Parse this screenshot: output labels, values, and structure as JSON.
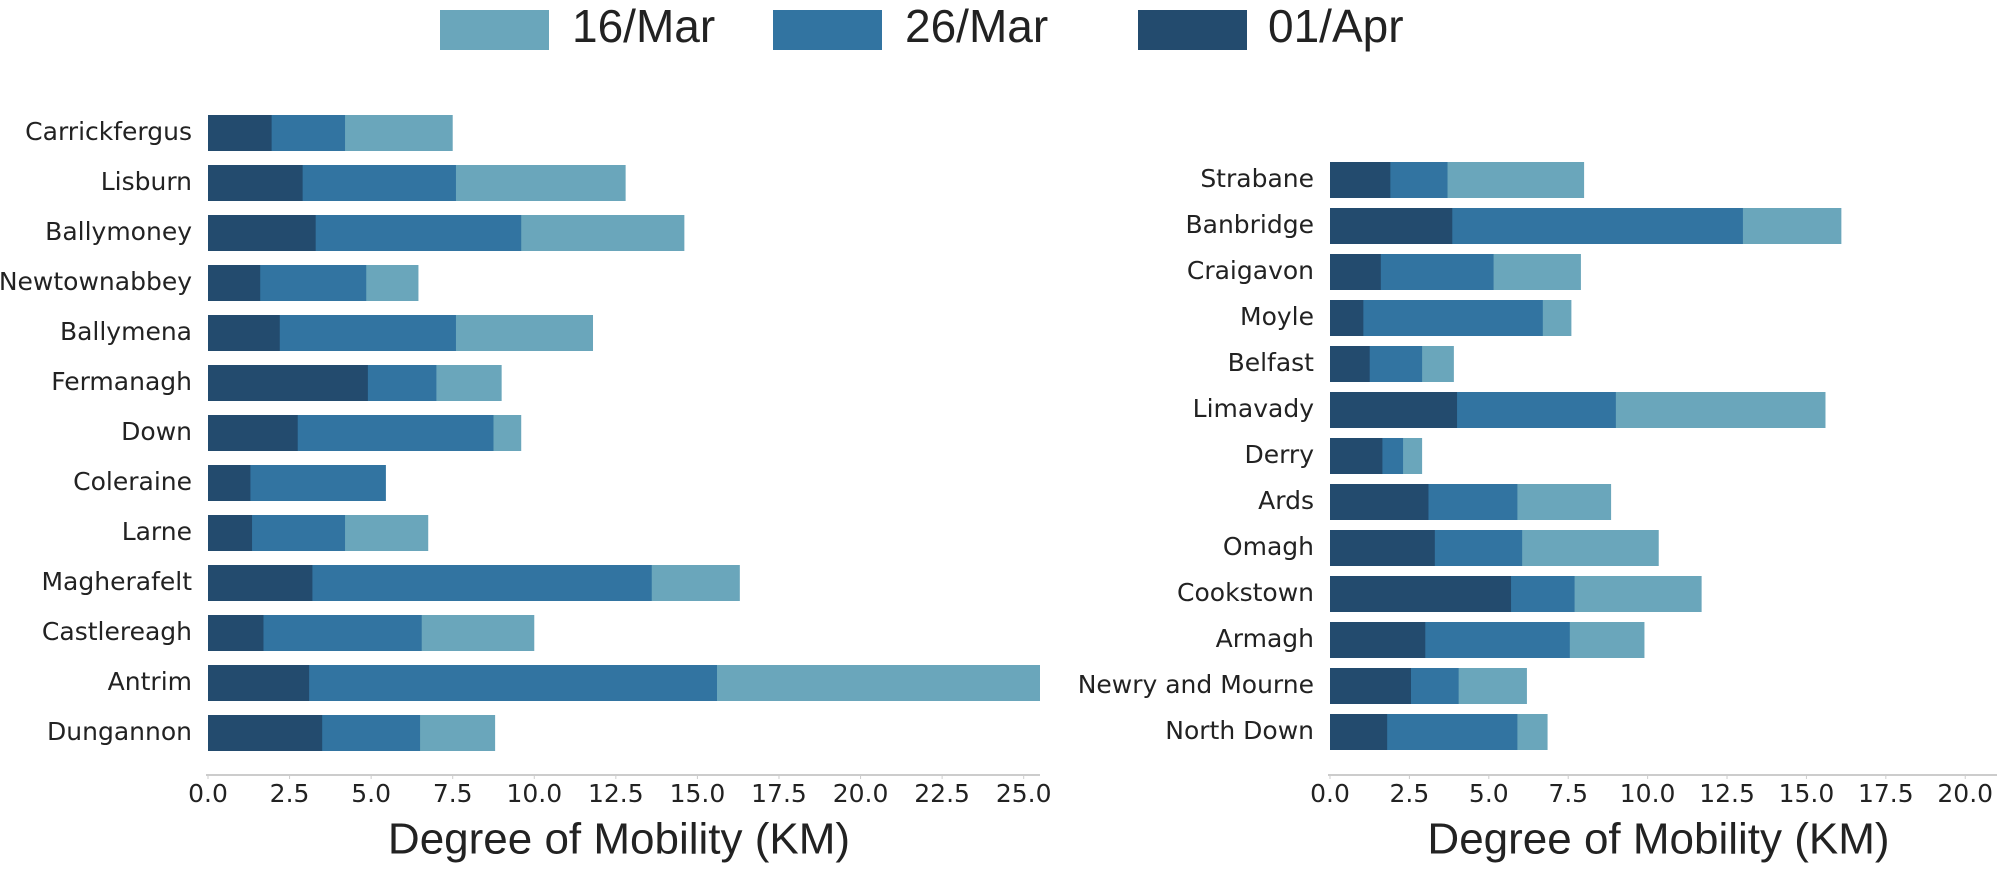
{
  "chart_data": [
    {
      "type": "barh",
      "xlabel": "Degree of Mobility (KM)",
      "categories": [
        "Carrickfergus",
        "Lisburn",
        "Ballymoney",
        "Newtownabbey",
        "Ballymena",
        "Fermanagh",
        "Down",
        "Coleraine",
        "Larne",
        "Magherafelt",
        "Castlereagh",
        "Antrim",
        "Dungannon"
      ],
      "series": [
        {
          "name": "16/Mar",
          "color": "#6aa6bb",
          "values": [
            7.5,
            12.8,
            14.6,
            6.45,
            11.8,
            9.0,
            9.6,
            5.45,
            6.75,
            16.3,
            10.0,
            25.5,
            8.8
          ]
        },
        {
          "name": "26/Mar",
          "color": "#3274a1",
          "values": [
            4.2,
            7.6,
            9.6,
            4.85,
            7.6,
            7.0,
            8.75,
            5.45,
            4.2,
            13.6,
            6.55,
            15.6,
            6.5
          ]
        },
        {
          "name": "01/Apr",
          "color": "#234b6e",
          "values": [
            1.95,
            2.9,
            3.3,
            1.6,
            2.2,
            4.9,
            2.75,
            1.3,
            1.35,
            3.2,
            1.7,
            3.1,
            3.5
          ]
        }
      ],
      "xlim": [
        0,
        25.5
      ],
      "xticks": [
        {
          "value": 0,
          "label": "0.0"
        },
        2.5,
        {
          "value": 5,
          "label": "5.0"
        },
        7.5,
        {
          "value": 10,
          "label": "10.0"
        },
        12.5,
        {
          "value": 15,
          "label": "15.0"
        },
        17.5,
        {
          "value": 20,
          "label": "20.0"
        },
        22.5,
        {
          "value": 25,
          "label": "25.0"
        }
      ]
    },
    {
      "type": "barh",
      "xlabel": "Degree of Mobility (KM)",
      "categories": [
        "Strabane",
        "Banbridge",
        "Craigavon",
        "Moyle",
        "Belfast",
        "Limavady",
        "Derry",
        "Ards",
        "Omagh",
        "Cookstown",
        "Armagh",
        "Newry and Mourne",
        "North Down"
      ],
      "series": [
        {
          "values": [
            8.0,
            16.1,
            7.9,
            7.6,
            3.9,
            15.6,
            2.9,
            8.85,
            10.35,
            11.7,
            9.9,
            6.2,
            6.85
          ]
        },
        {
          "values": [
            3.7,
            13.0,
            5.15,
            6.7,
            2.9,
            9.0,
            2.3,
            5.9,
            6.05,
            7.7,
            7.55,
            4.05,
            5.9
          ]
        },
        {
          "values": [
            1.9,
            3.85,
            1.6,
            1.05,
            1.25,
            4.0,
            1.65,
            3.1,
            3.3,
            5.7,
            3.0,
            2.55,
            1.8
          ]
        }
      ],
      "xlim": [
        0,
        21
      ],
      "xticks": [
        {
          "value": 0,
          "label": "0.0"
        },
        2.5,
        {
          "value": 5,
          "label": "5.0"
        },
        7.5,
        {
          "value": 10,
          "label": "10.0"
        },
        12.5,
        {
          "value": 15,
          "label": "15.0"
        },
        17.5,
        {
          "value": 20,
          "label": "20.0"
        }
      ]
    }
  ]
}
